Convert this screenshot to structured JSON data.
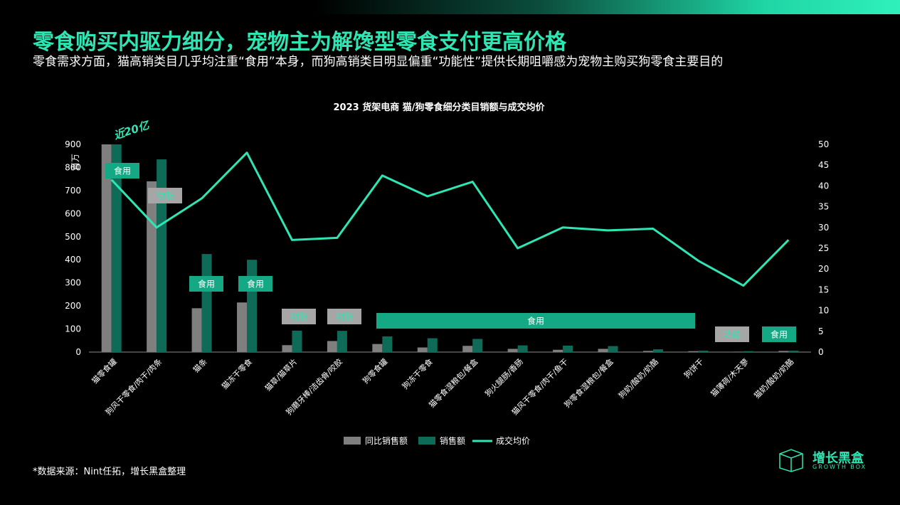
{
  "header": {
    "title": "零食购买内驱力细分，宠物主为解馋型零食支付更高价格",
    "subtitle": "零食需求方面，猫高销类目几乎均注重“食用”本身，而狗高销类目明显偏重“功能性”提供长期咀嚼感为宠物主购买狗零食主要目的"
  },
  "footer": {
    "source": "*数据来源：Nint任拓，增长黑盒整理",
    "logo_text": "增长黑盒",
    "logo_sub": "GROWTH BOX"
  },
  "colors": {
    "accent": "#2ee6b4",
    "yoy_bar": "#7f7f7f",
    "sales_bar": "#0e6b58",
    "tag_food": "#14a884",
    "tag_func": "#a6a6a6",
    "func_text": "#2ee6b4"
  },
  "chart_data": {
    "type": "bar",
    "title": "2023 货架电商 猫/狗零食细分类目销额与成交均价",
    "ylabel": "百万",
    "ylim": [
      0,
      900
    ],
    "y2lim": [
      0,
      50
    ],
    "yticks": [
      0,
      100,
      200,
      300,
      400,
      500,
      600,
      700,
      800,
      900
    ],
    "y2ticks": [
      0,
      5,
      10,
      15,
      20,
      25,
      30,
      35,
      40,
      45,
      50
    ],
    "categories": [
      "猫零食罐",
      "狗风干零食/肉干/肉条",
      "猫条",
      "猫冻干零食",
      "猫草/猫草片",
      "狗磨牙棒/洁齿骨/咬胶",
      "狗零食罐",
      "狗冻干零食",
      "猫零食湿粮包/餐盒",
      "狗火腿肠/香肠",
      "猫风干零食/肉干/鱼干",
      "狗零食湿粮包/餐盒",
      "狗奶/酸奶/奶酪",
      "狗饼干",
      "猫薄荷/木天蓼",
      "猫奶/酸奶/奶酪"
    ],
    "series": [
      {
        "name": "同比销售额",
        "axis": "left",
        "type": "bar",
        "values": [
          900,
          740,
          190,
          215,
          30,
          48,
          35,
          20,
          27,
          14,
          10,
          14,
          5,
          4,
          2,
          5
        ]
      },
      {
        "name": "销售额",
        "axis": "left",
        "type": "bar",
        "values": [
          900,
          835,
          425,
          400,
          93,
          92,
          68,
          60,
          57,
          29,
          28,
          26,
          12,
          6,
          4,
          6
        ]
      },
      {
        "name": "成交均价",
        "axis": "right",
        "type": "line",
        "values": [
          41.5,
          30,
          37,
          48,
          27,
          27.5,
          42.5,
          37.5,
          41,
          25,
          30,
          29.3,
          29.7,
          22,
          16,
          27
        ]
      }
    ],
    "legend": "bottom",
    "annotations": {
      "callout": "近20亿",
      "food": "食用",
      "func": "功能"
    }
  }
}
